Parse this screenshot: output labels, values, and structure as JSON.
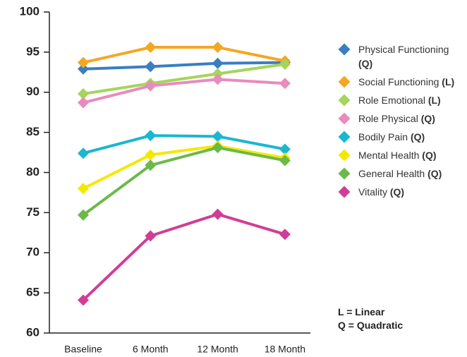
{
  "chart_data": {
    "type": "line",
    "categories": [
      "Baseline",
      "6 Month",
      "12 Month",
      "18 Month"
    ],
    "ylim": [
      60,
      100
    ],
    "yticks": [
      60,
      65,
      70,
      75,
      80,
      85,
      90,
      95,
      100
    ],
    "series": [
      {
        "name": "Physical Functioning",
        "model": "(Q)",
        "color": "#3a7ec2",
        "values": [
          92.9,
          93.2,
          93.6,
          93.7
        ]
      },
      {
        "name": "Social Functioning",
        "model": "(L)",
        "color": "#f5a623",
        "values": [
          93.7,
          95.6,
          95.6,
          93.9
        ]
      },
      {
        "name": "Role Emotional",
        "model": "(L)",
        "color": "#a5d55a",
        "values": [
          89.8,
          91.1,
          92.3,
          93.5
        ]
      },
      {
        "name": "Role Physical",
        "model": "(Q)",
        "color": "#e88bbd",
        "values": [
          88.7,
          90.8,
          91.6,
          91.1
        ]
      },
      {
        "name": "Bodily Pain",
        "model": "(Q)",
        "color": "#1ab7d0",
        "values": [
          82.4,
          84.6,
          84.5,
          82.9
        ]
      },
      {
        "name": "Mental Health",
        "model": "(Q)",
        "color": "#f5e800",
        "values": [
          78.0,
          82.2,
          83.3,
          81.8
        ]
      },
      {
        "name": "General Health",
        "model": "(Q)",
        "color": "#6cb94a",
        "values": [
          74.7,
          80.9,
          83.1,
          81.5
        ]
      },
      {
        "name": "Vitality",
        "model": "(Q)",
        "color": "#d13d96",
        "values": [
          64.1,
          72.1,
          74.8,
          72.3
        ]
      }
    ],
    "annotations": [
      "L = Linear",
      "Q = Quadratic"
    ]
  }
}
